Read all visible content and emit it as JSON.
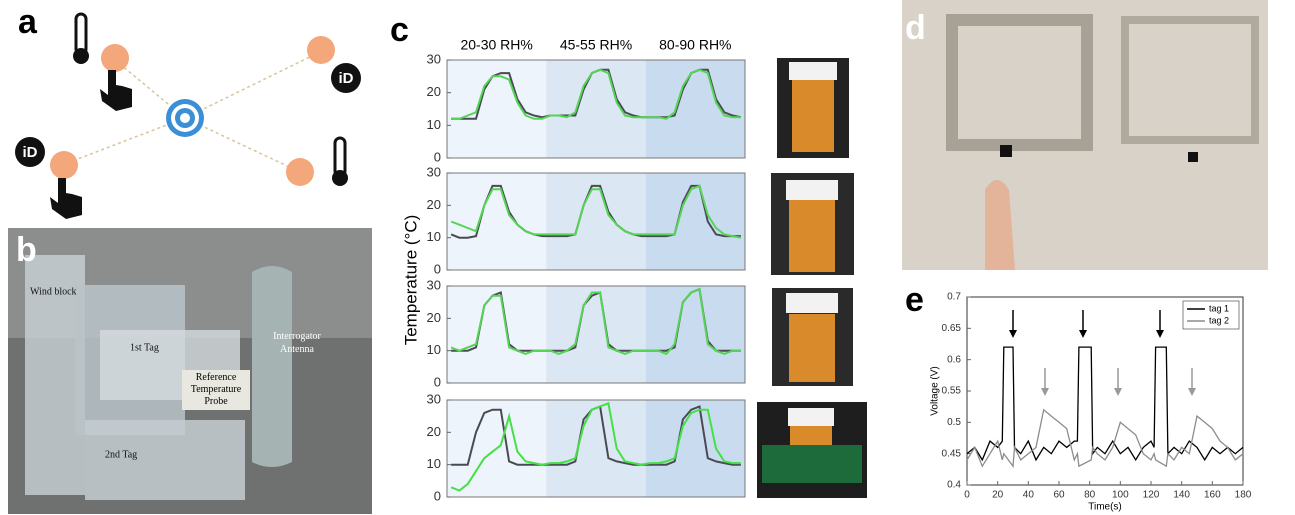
{
  "panel_labels": [
    "a",
    "b",
    "c",
    "d",
    "e"
  ],
  "panel_a": {
    "icon_labels": [
      "iD",
      "iD"
    ]
  },
  "panel_b": {
    "labels": [
      "Wind block",
      "1st Tag",
      "Reference Temperature Probe",
      "Interrogator Antenna",
      "2nd Tag"
    ]
  },
  "panel_c": {
    "column_headers": [
      "20-30 RH%",
      "45-55 RH%",
      "80-90 RH%"
    ],
    "ylabel": "Temperature (°C)"
  },
  "chart_data": [
    {
      "type": "line",
      "ylim": [
        0,
        30
      ],
      "yticks": [
        0,
        10,
        20,
        30
      ],
      "series": [
        {
          "color": "#4a4a52",
          "values": [
            12,
            12,
            12,
            12,
            21,
            25,
            26,
            26,
            18,
            14,
            13,
            12.5,
            13,
            13,
            13,
            13,
            21,
            26,
            27,
            27,
            18,
            14,
            13,
            12.5,
            12.5,
            12.5,
            12.5,
            13,
            21,
            26,
            27,
            27,
            18,
            14,
            13,
            12.5
          ]
        },
        {
          "color": "#55d455",
          "values": [
            12,
            12,
            13,
            14,
            22,
            25,
            25,
            24,
            17,
            13,
            12,
            12,
            13,
            13,
            12.5,
            14,
            22,
            26,
            27,
            26,
            17,
            13,
            12.5,
            12.5,
            12.5,
            12.5,
            12,
            14,
            22,
            26,
            27,
            26,
            17,
            13,
            12.5,
            12.5
          ]
        }
      ]
    },
    {
      "type": "line",
      "ylim": [
        0,
        30
      ],
      "yticks": [
        0,
        10,
        20,
        30
      ],
      "series": [
        {
          "color": "#4a4a52",
          "values": [
            11,
            10,
            10,
            10.5,
            20,
            26,
            26,
            18,
            14,
            12,
            11,
            10.5,
            10.5,
            10.5,
            10.5,
            11,
            20,
            26,
            26,
            18,
            14,
            12,
            11,
            10.5,
            10.5,
            10.5,
            10.5,
            11,
            21,
            26,
            26,
            15,
            11,
            10.5,
            10.5,
            10.5
          ]
        },
        {
          "color": "#55d455",
          "values": [
            15,
            14,
            13,
            12,
            20,
            25,
            25,
            17,
            14,
            12,
            11,
            11,
            11,
            11,
            11,
            11,
            20,
            25,
            25,
            17,
            14,
            12,
            11,
            11,
            11,
            11,
            11,
            11,
            20,
            25,
            26,
            17,
            13,
            11,
            10.5,
            10
          ]
        }
      ]
    },
    {
      "type": "line",
      "ylim": [
        0,
        30
      ],
      "yticks": [
        0,
        10,
        20,
        30
      ],
      "series": [
        {
          "color": "#4a4a52",
          "values": [
            10,
            10,
            10,
            11,
            24,
            27,
            28,
            12,
            10,
            10,
            10,
            10,
            10,
            10,
            10,
            11,
            24,
            27,
            28,
            12,
            10,
            10,
            10,
            10,
            10,
            10,
            10,
            11,
            25,
            28,
            29,
            13,
            10,
            10,
            10,
            10
          ]
        },
        {
          "color": "#55d455",
          "values": [
            11,
            10,
            11,
            12,
            24,
            27,
            27,
            11,
            10,
            9,
            10,
            10,
            10,
            9,
            10,
            12,
            24,
            28,
            28,
            11,
            10,
            9,
            10,
            10,
            10,
            10,
            9,
            12,
            25,
            28,
            29,
            12,
            10,
            9,
            10,
            10
          ]
        }
      ]
    },
    {
      "type": "line",
      "ylim": [
        0,
        30
      ],
      "yticks": [
        0,
        10,
        20,
        30
      ],
      "series": [
        {
          "color": "#4a4a52",
          "values": [
            10,
            10,
            10,
            20,
            26,
            27,
            27,
            11,
            10,
            10,
            10,
            10,
            10,
            10,
            10,
            11,
            24,
            27,
            28,
            12,
            11,
            10.5,
            10,
            10,
            10,
            10,
            10,
            11,
            24,
            27,
            28,
            12,
            11,
            10.5,
            10,
            10
          ]
        },
        {
          "color": "#44e044",
          "values": [
            3,
            2,
            4,
            8,
            12,
            14,
            16,
            25,
            14,
            11,
            10.5,
            10,
            10.5,
            10.5,
            11,
            12,
            22,
            27,
            28,
            29,
            15,
            11,
            10.5,
            10,
            10.5,
            10.5,
            11,
            12,
            22,
            26,
            27,
            27,
            15,
            11,
            10.5,
            10.5
          ]
        }
      ]
    },
    {
      "type": "line",
      "xlabel": "Time(s)",
      "ylabel": "Voltage (V)",
      "legend": "upper right",
      "xlim": [
        0,
        180
      ],
      "xticks": [
        0,
        20,
        40,
        60,
        80,
        100,
        120,
        140,
        160,
        180
      ],
      "ylim": [
        0.4,
        0.7
      ],
      "yticks": [
        0.4,
        0.45,
        0.5,
        0.55,
        0.6,
        0.65,
        0.7
      ],
      "x": [
        0,
        5,
        10,
        15,
        20,
        23,
        24,
        30,
        31,
        35,
        40,
        45,
        50,
        55,
        60,
        65,
        70,
        72,
        73,
        81,
        82,
        85,
        90,
        95,
        100,
        105,
        110,
        115,
        120,
        122,
        123,
        130,
        131,
        135,
        140,
        145,
        150,
        155,
        160,
        165,
        170,
        175,
        180
      ],
      "series": [
        {
          "name": "tag 1",
          "color": "#000000",
          "values": [
            0.45,
            0.46,
            0.44,
            0.47,
            0.46,
            0.47,
            0.62,
            0.62,
            0.46,
            0.45,
            0.47,
            0.44,
            0.46,
            0.45,
            0.47,
            0.46,
            0.47,
            0.47,
            0.62,
            0.62,
            0.45,
            0.46,
            0.45,
            0.47,
            0.45,
            0.46,
            0.44,
            0.46,
            0.47,
            0.46,
            0.62,
            0.62,
            0.45,
            0.46,
            0.45,
            0.47,
            0.46,
            0.44,
            0.46,
            0.45,
            0.46,
            0.45,
            0.46
          ]
        },
        {
          "name": "tag 2",
          "color": "#8c8c8c",
          "values": [
            0.44,
            0.46,
            0.43,
            0.45,
            0.47,
            0.44,
            0.45,
            0.43,
            0.46,
            0.44,
            0.45,
            0.46,
            0.52,
            0.51,
            0.5,
            0.49,
            0.44,
            0.45,
            0.43,
            0.44,
            0.46,
            0.45,
            0.44,
            0.46,
            0.5,
            0.49,
            0.48,
            0.45,
            0.44,
            0.45,
            0.44,
            0.43,
            0.45,
            0.44,
            0.46,
            0.45,
            0.51,
            0.5,
            0.49,
            0.47,
            0.46,
            0.44,
            0.45
          ]
        }
      ]
    }
  ]
}
